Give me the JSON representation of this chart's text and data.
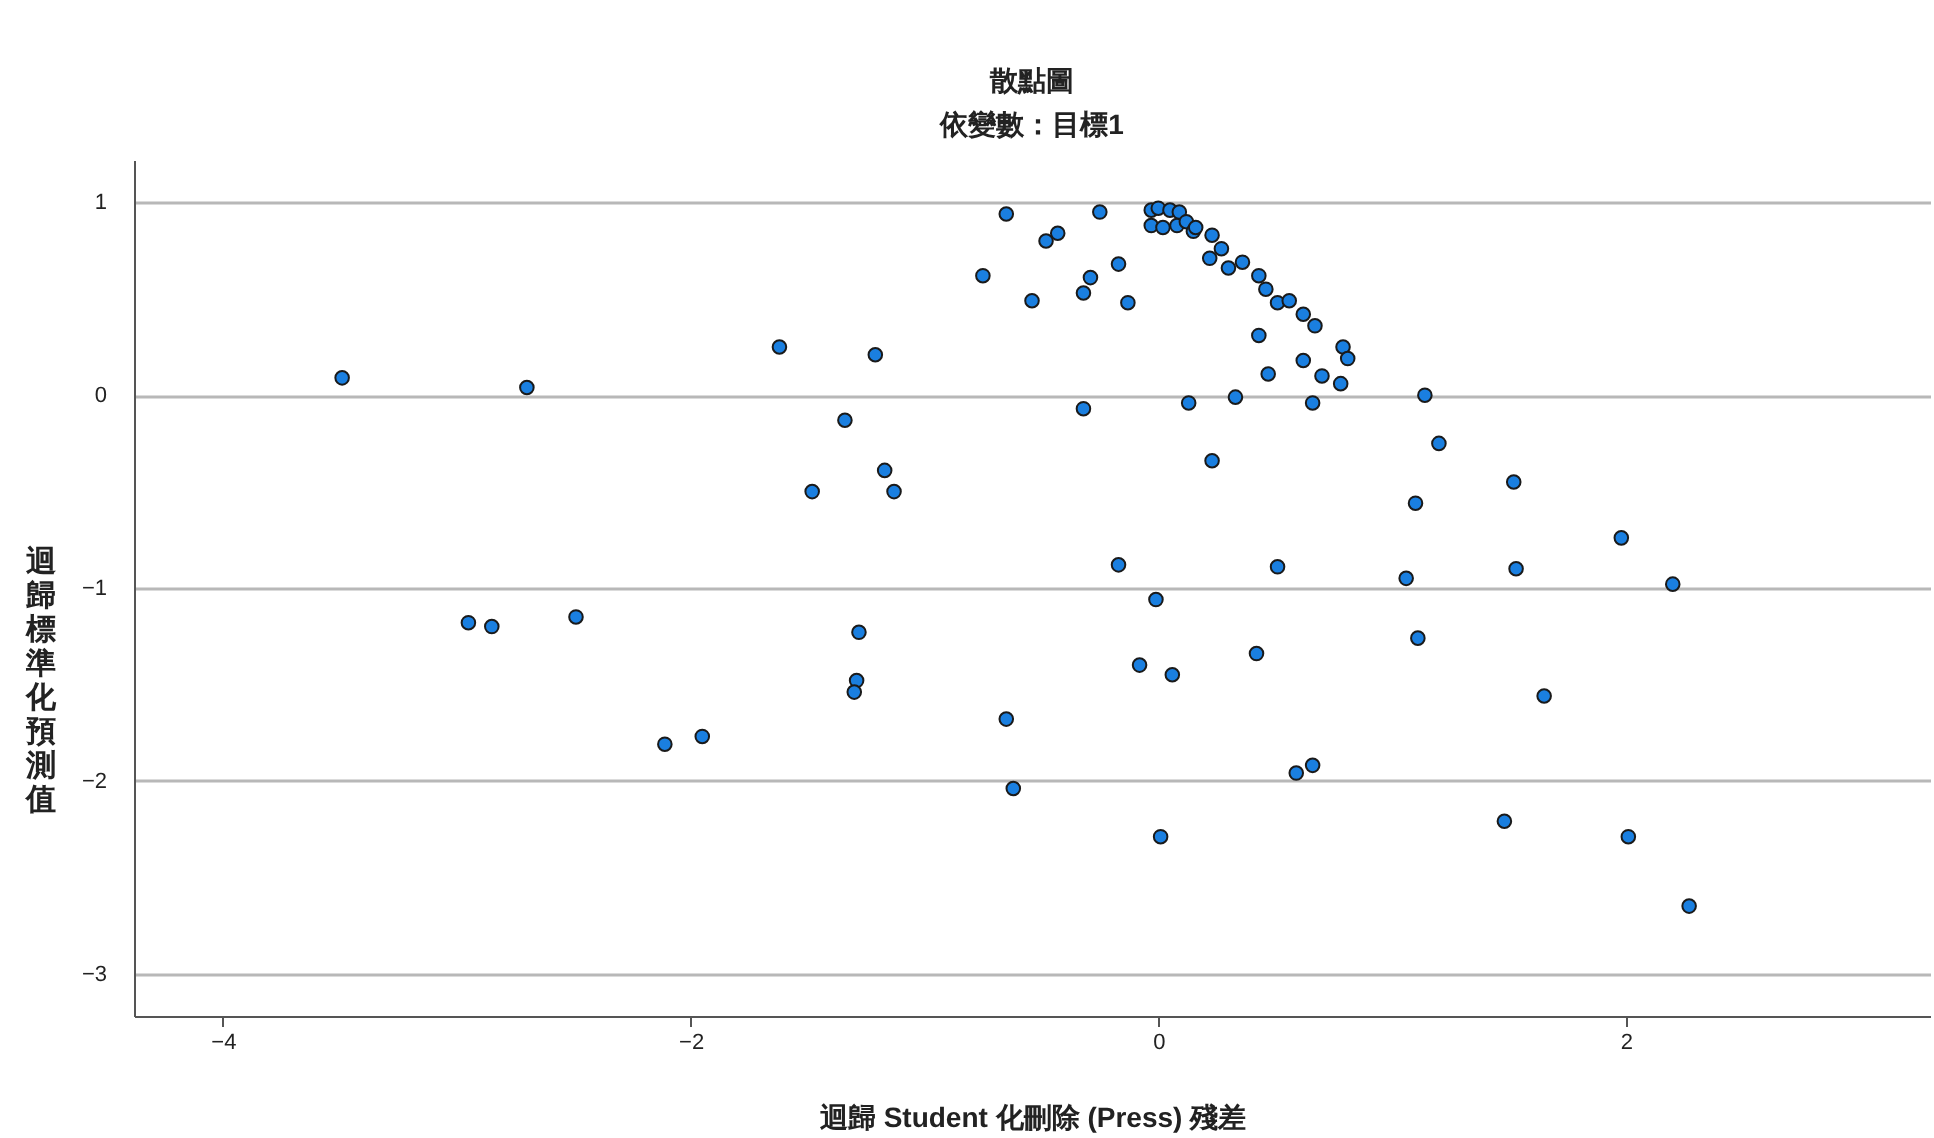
{
  "chart_data": {
    "type": "scatter",
    "title": "散點圖",
    "subtitle": "依變數：目標1",
    "xlabel": "迴歸 Student 化刪除 (Press) 殘差",
    "ylabel": "迴歸標準化預測值",
    "xlim": [
      -4.38,
      3.3
    ],
    "xticks": [
      -4,
      -2,
      0,
      2
    ],
    "ylim": [
      -3.22,
      1.22
    ],
    "yticks": [
      -3,
      -2,
      -1,
      0,
      1
    ],
    "grid": "y",
    "marker": "circle",
    "legend": false,
    "series": [
      {
        "color": "#1a7fe0",
        "x": [
          -3.49,
          -2.7,
          -2.95,
          -2.85,
          -2.49,
          -2.11,
          -1.95,
          -1.62,
          -1.21,
          -1.34,
          -1.48,
          -1.17,
          -1.13,
          -1.28,
          -1.29,
          -1.3,
          -0.65,
          -0.62,
          -0.65,
          -0.25,
          -0.48,
          -0.43,
          -0.75,
          -0.54,
          -0.29,
          -0.32,
          -0.17,
          -0.13,
          -0.32,
          -0.03,
          0.0,
          0.05,
          0.09,
          -0.03,
          0.02,
          0.08,
          0.12,
          0.15,
          0.16,
          0.23,
          0.27,
          0.22,
          0.3,
          0.36,
          0.43,
          0.46,
          0.51,
          0.56,
          0.62,
          0.67,
          0.43,
          0.79,
          0.81,
          0.62,
          0.47,
          0.7,
          0.78,
          0.13,
          0.33,
          0.66,
          1.14,
          0.23,
          1.2,
          1.52,
          1.1,
          1.98,
          -0.17,
          0.51,
          1.06,
          1.53,
          2.2,
          -0.01,
          1.11,
          -0.08,
          0.06,
          0.42,
          1.65,
          0.59,
          0.66,
          0.01,
          1.48,
          2.01,
          2.27
        ],
        "values": [
          0.09,
          0.04,
          -1.18,
          -1.2,
          -1.15,
          -1.81,
          -1.77,
          0.25,
          0.21,
          -0.13,
          -0.5,
          -0.39,
          -0.5,
          -1.23,
          -1.48,
          -1.54,
          -1.68,
          -2.04,
          0.94,
          0.95,
          0.8,
          0.84,
          0.62,
          0.49,
          0.61,
          0.53,
          0.68,
          0.48,
          -0.07,
          0.96,
          0.97,
          0.96,
          0.95,
          0.88,
          0.87,
          0.88,
          0.9,
          0.85,
          0.87,
          0.83,
          0.76,
          0.71,
          0.66,
          0.69,
          0.62,
          0.55,
          0.48,
          0.49,
          0.42,
          0.36,
          0.31,
          0.25,
          0.19,
          0.18,
          0.11,
          0.1,
          0.06,
          -0.04,
          -0.01,
          -0.04,
          0.0,
          -0.34,
          -0.25,
          -0.45,
          -0.56,
          -0.74,
          -0.88,
          -0.89,
          -0.95,
          -0.9,
          -0.98,
          -1.06,
          -1.26,
          -1.4,
          -1.45,
          -1.34,
          -1.56,
          -1.96,
          -1.92,
          -2.29,
          -2.21,
          -2.29,
          -2.65
        ]
      }
    ]
  }
}
